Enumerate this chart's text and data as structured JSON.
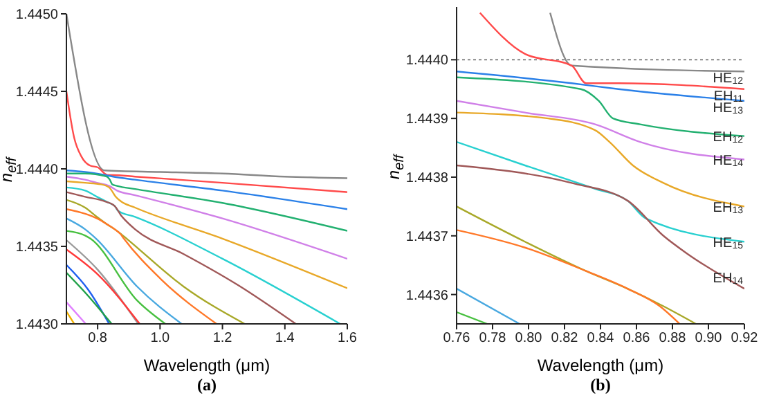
{
  "chart_data": [
    {
      "type": "line",
      "title": "(a)",
      "xlabel": "Wavelength (μm)",
      "ylabel": "n$_{eff}$",
      "xlim": [
        0.7,
        1.6
      ],
      "ylim": [
        1.443,
        1.445
      ],
      "xticks": [
        0.8,
        {
          "value": 1,
          "label": "1.0"
        },
        1.2,
        1.4,
        1.6
      ],
      "yticks": [
        {
          "value": 1.443,
          "label": "1.4430"
        },
        1.4435,
        {
          "value": 1.444,
          "label": "1.4440"
        },
        1.4445,
        {
          "value": 1.445,
          "label": "1.4450"
        }
      ],
      "grid": false,
      "legend": false,
      "marker": "none",
      "line_style": "solid",
      "series": [
        {
          "color": "#888888",
          "x": [
            0.7,
            0.822,
            1.0,
            1.2,
            1.4,
            1.6
          ],
          "values": [
            1.445,
            1.44399,
            1.44398,
            1.44397,
            1.44395,
            1.44394
          ]
        },
        {
          "color": "#ff4a4a",
          "x": [
            0.7,
            0.725,
            0.748,
            0.777,
            0.8,
            0.832,
            0.85,
            0.92,
            1.2,
            1.6
          ],
          "values": [
            1.4445,
            1.4442,
            1.44408,
            1.44402,
            1.44401,
            1.44396,
            1.44396,
            1.44395,
            1.44391,
            1.44385
          ]
        },
        {
          "color": "#2a80e8",
          "x": [
            0.7,
            0.76,
            0.824,
            0.85,
            0.92,
            1.2,
            1.6
          ],
          "values": [
            1.44399,
            1.44398,
            1.44396,
            1.44395,
            1.44393,
            1.44386,
            1.44374
          ]
        },
        {
          "color": "#22b070",
          "x": [
            0.7,
            0.76,
            0.829,
            0.839,
            0.847,
            0.862,
            0.92,
            1.2,
            1.6
          ],
          "values": [
            1.44397,
            1.44397,
            1.44395,
            1.44393,
            1.4439,
            1.44389,
            1.44387,
            1.44378,
            1.4436
          ]
        },
        {
          "color": "#d080e8",
          "x": [
            0.7,
            0.76,
            0.798,
            0.837,
            0.862,
            0.92,
            1.2,
            1.6
          ],
          "values": [
            1.44395,
            1.44393,
            1.44391,
            1.44389,
            1.44386,
            1.44383,
            1.44368,
            1.44342
          ]
        },
        {
          "color": "#e8a828",
          "x": [
            0.7,
            0.76,
            0.811,
            0.837,
            0.845,
            0.858,
            0.875,
            0.92,
            1.2,
            1.6
          ],
          "values": [
            1.44392,
            1.44391,
            1.4439,
            1.44388,
            1.44386,
            1.44382,
            1.44379,
            1.44375,
            1.44355,
            1.44323
          ]
        },
        {
          "color": "#28d0d0",
          "x": [
            0.7,
            0.76,
            0.798,
            0.837,
            0.855,
            0.865,
            0.92,
            1.2,
            1.577
          ],
          "values": [
            1.44388,
            1.44386,
            1.44382,
            1.44378,
            1.44376,
            1.44373,
            1.44369,
            1.44342,
            1.443
          ]
        },
        {
          "color": "#a05858",
          "x": [
            0.7,
            0.76,
            0.824,
            0.855,
            0.875,
            0.888,
            0.92,
            1.076,
            1.25,
            1.435
          ],
          "values": [
            1.44385,
            1.44382,
            1.44379,
            1.44376,
            1.4437,
            1.44367,
            1.44361,
            1.44345,
            1.44325,
            1.443
          ]
        },
        {
          "color": "#a8a828",
          "x": [
            0.7,
            0.76,
            0.798,
            0.832,
            0.855,
            0.875,
            0.893,
            1.076,
            1.271
          ],
          "values": [
            1.4438,
            1.44375,
            1.44369,
            1.44364,
            1.44361,
            1.44358,
            1.44355,
            1.44324,
            1.443
          ]
        },
        {
          "color": "#ff7828",
          "x": [
            0.7,
            0.76,
            0.798,
            0.832,
            0.855,
            0.873,
            0.884,
            1.002,
            1.181
          ],
          "values": [
            1.44374,
            1.44371,
            1.44368,
            1.44364,
            1.44361,
            1.44358,
            1.44355,
            1.44329,
            1.443
          ]
        },
        {
          "color": "#48a8e0",
          "x": [
            0.7,
            0.76,
            0.795,
            0.927,
            1.069
          ],
          "values": [
            1.44368,
            1.44361,
            1.44355,
            1.44324,
            1.443
          ]
        },
        {
          "color": "#48c040",
          "x": [
            0.7,
            0.76,
            0.777,
            0.927,
            1.017
          ],
          "values": [
            1.4436,
            1.44357,
            1.44355,
            1.44315,
            1.443
          ]
        },
        {
          "color": "#9a9a9a",
          "x": [
            0.7,
            0.8,
            0.93
          ],
          "values": [
            1.44354,
            1.44335,
            1.443
          ]
        },
        {
          "color": "#ff3838",
          "x": [
            0.7,
            0.8,
            0.935
          ],
          "values": [
            1.44348,
            1.44332,
            1.443
          ]
        },
        {
          "color": "#2060f0",
          "x": [
            0.7,
            0.77,
            0.837
          ],
          "values": [
            1.44338,
            1.44322,
            1.443
          ]
        },
        {
          "color": "#20a048",
          "x": [
            0.7,
            0.77,
            0.845
          ],
          "values": [
            1.44333,
            1.44318,
            1.443
          ]
        },
        {
          "color": "#e080ff",
          "x": [
            0.7,
            0.762
          ],
          "values": [
            1.44314,
            1.443
          ]
        },
        {
          "color": "#f0b000",
          "x": [
            0.7,
            0.725
          ],
          "values": [
            1.44308,
            1.443
          ]
        }
      ]
    },
    {
      "type": "line",
      "title": "(b)",
      "xlabel": "Wavelength (μm)",
      "ylabel": "n$_{eff}$",
      "xlim": [
        0.76,
        0.92
      ],
      "ylim": [
        1.44355,
        1.44409
      ],
      "xticks": [
        0.76,
        0.78,
        {
          "value": 0.8,
          "label": "0.80"
        },
        0.82,
        0.84,
        0.86,
        0.88,
        {
          "value": 0.9,
          "label": "0.90"
        },
        0.92
      ],
      "yticks": [
        1.4436,
        1.4437,
        1.4438,
        1.4439,
        {
          "value": 1.444,
          "label": "1.4440"
        }
      ],
      "grid": false,
      "legend": false,
      "marker": "none",
      "line_style": "solid",
      "ref_lines": [
        {
          "axis": "y",
          "value": 1.444,
          "color": "#888888",
          "line_style": "dotted"
        }
      ],
      "annotations": [
        {
          "text": "HE$_{12}$",
          "y": 1.44398
        },
        {
          "text": "EH$_{11}$",
          "y": 1.44395
        },
        {
          "text": "HE$_{13}$",
          "y": 1.44393
        },
        {
          "text": "EH$_{12}$",
          "y": 1.44388
        },
        {
          "text": "HE$_{14}$",
          "y": 1.44384
        },
        {
          "text": "EH$_{13}$",
          "y": 1.44376
        },
        {
          "text": "HE$_{15}$",
          "y": 1.4437
        },
        {
          "text": "EH$_{14}$",
          "y": 1.44364
        }
      ],
      "series": [
        {
          "color": "#888888",
          "x": [
            0.812,
            0.824,
            0.92
          ],
          "values": [
            1.44408,
            1.44399,
            1.44398
          ]
        },
        {
          "color": "#ff4a4a",
          "x": [
            0.773,
            0.798,
            0.824,
            0.832,
            0.85,
            0.92
          ],
          "values": [
            1.44408,
            1.44401,
            1.44399,
            1.44396,
            1.44396,
            1.44395
          ]
        },
        {
          "color": "#2a80e8",
          "x": [
            0.76,
            0.824,
            0.85,
            0.92
          ],
          "values": [
            1.44398,
            1.44396,
            1.44395,
            1.44393
          ]
        },
        {
          "color": "#22b070",
          "x": [
            0.76,
            0.829,
            0.839,
            0.847,
            0.862,
            0.92
          ],
          "values": [
            1.44397,
            1.44395,
            1.44393,
            1.4439,
            1.44389,
            1.44387
          ]
        },
        {
          "color": "#d080e8",
          "x": [
            0.76,
            0.798,
            0.837,
            0.862,
            0.92
          ],
          "values": [
            1.44393,
            1.44391,
            1.44389,
            1.44386,
            1.44383
          ]
        },
        {
          "color": "#e8a828",
          "x": [
            0.76,
            0.811,
            0.837,
            0.845,
            0.858,
            0.875,
            0.92
          ],
          "values": [
            1.44391,
            1.4439,
            1.44388,
            1.44386,
            1.44382,
            1.44379,
            1.44375
          ]
        },
        {
          "color": "#28d0d0",
          "x": [
            0.76,
            0.798,
            0.837,
            0.855,
            0.865,
            0.92
          ],
          "values": [
            1.44386,
            1.44382,
            1.44378,
            1.44376,
            1.44373,
            1.44369
          ]
        },
        {
          "color": "#a05858",
          "x": [
            0.76,
            0.824,
            0.855,
            0.875,
            0.888,
            0.92
          ],
          "values": [
            1.44382,
            1.44379,
            1.44376,
            1.4437,
            1.44367,
            1.44361
          ]
        },
        {
          "color": "#a8a828",
          "x": [
            0.76,
            0.798,
            0.832,
            0.855,
            0.875,
            0.893
          ],
          "values": [
            1.44375,
            1.44369,
            1.44364,
            1.44361,
            1.44358,
            1.44355
          ]
        },
        {
          "color": "#ff7828",
          "x": [
            0.76,
            0.798,
            0.832,
            0.855,
            0.873,
            0.884
          ],
          "values": [
            1.44371,
            1.44368,
            1.44364,
            1.44361,
            1.44358,
            1.44355
          ]
        },
        {
          "color": "#48a8e0",
          "x": [
            0.76,
            0.795
          ],
          "values": [
            1.44361,
            1.44355
          ]
        },
        {
          "color": "#48c040",
          "x": [
            0.76,
            0.777
          ],
          "values": [
            1.44357,
            1.44355
          ]
        }
      ]
    }
  ]
}
